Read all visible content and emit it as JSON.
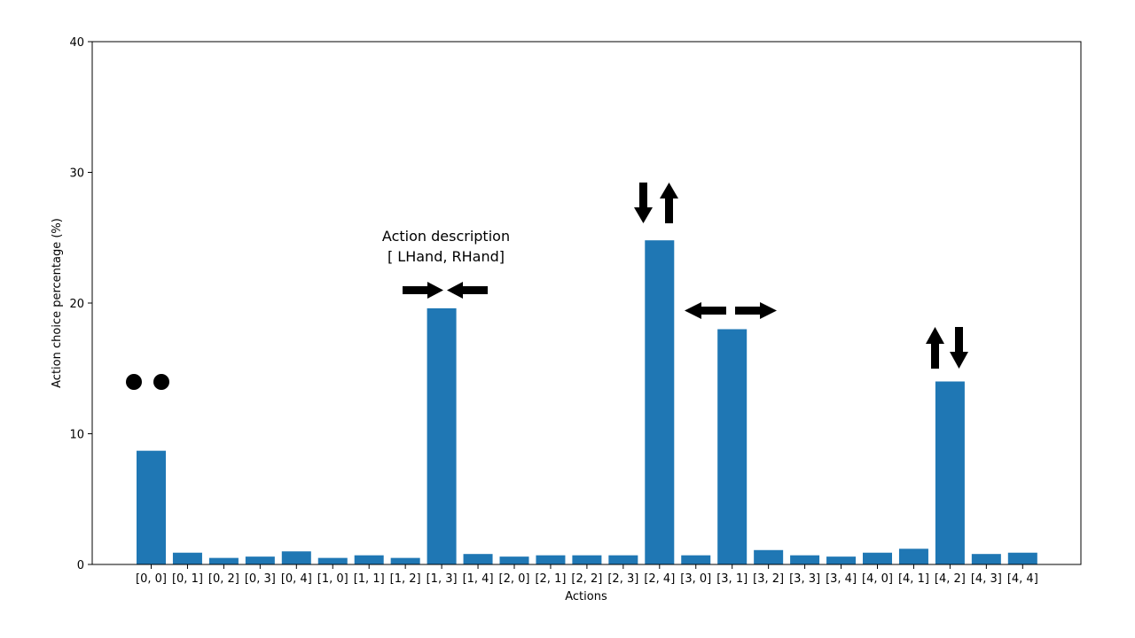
{
  "chart_data": {
    "type": "bar",
    "title": "",
    "xlabel": "Actions",
    "ylabel": "Action choice percentage (%)",
    "ylim": [
      0,
      40
    ],
    "yticks": [
      0,
      10,
      20,
      30,
      40
    ],
    "grid": false,
    "bar_color": "#1f77b4",
    "categories": [
      "[0, 0]",
      "[0, 1]",
      "[0, 2]",
      "[0, 3]",
      "[0, 4]",
      "[1, 0]",
      "[1, 1]",
      "[1, 2]",
      "[1, 3]",
      "[1, 4]",
      "[2, 0]",
      "[2, 1]",
      "[2, 2]",
      "[2, 3]",
      "[2, 4]",
      "[3, 0]",
      "[3, 1]",
      "[3, 2]",
      "[3, 3]",
      "[3, 4]",
      "[4, 0]",
      "[4, 1]",
      "[4, 2]",
      "[4, 3]",
      "[4, 4]"
    ],
    "values": [
      8.7,
      0.9,
      0.5,
      0.6,
      1.0,
      0.5,
      0.7,
      0.5,
      19.6,
      0.8,
      0.6,
      0.7,
      0.7,
      0.7,
      24.8,
      0.7,
      18.0,
      1.1,
      0.7,
      0.6,
      0.9,
      1.2,
      14.0,
      0.8,
      0.9
    ],
    "annotations": [
      {
        "text_line1": "Action description",
        "text_line2": "[ LHand, RHand]",
        "category": "[1, 3]"
      },
      {
        "symbol": "dots",
        "category": "[0, 0]"
      },
      {
        "symbol": "arrows-converge-horizontal",
        "category": "[1, 3]"
      },
      {
        "symbol": "arrows-down-up",
        "category": "[2, 4]"
      },
      {
        "symbol": "arrows-diverge-horizontal",
        "category": "[3, 1]"
      },
      {
        "symbol": "arrows-up-down",
        "category": "[4, 2]"
      }
    ]
  }
}
